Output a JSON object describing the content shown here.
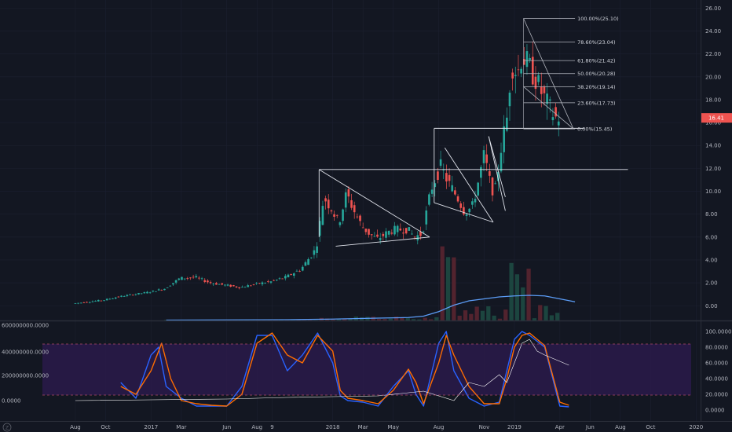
{
  "chart_data": [
    {
      "type": "candlestick",
      "pane": "price",
      "y_axis": {
        "ticks": [
          "26.00",
          "24.00",
          "22.00",
          "20.00",
          "18.00",
          "16.00",
          "14.00",
          "12.00",
          "10.00",
          "8.00",
          "6.00",
          "4.00",
          "2.00",
          "0.00"
        ],
        "range": [
          -0.6,
          26.3
        ]
      },
      "x_axis": {
        "ticks": [
          {
            "label": "Aug",
            "t": 0
          },
          {
            "label": "Oct",
            "t": 2
          },
          {
            "label": "2017",
            "t": 5
          },
          {
            "label": "Mar",
            "t": 7
          },
          {
            "label": "Jun",
            "t": 10
          },
          {
            "label": "Aug",
            "t": 12
          },
          {
            "label": "9",
            "t": 13
          },
          {
            "label": "2018",
            "t": 17
          },
          {
            "label": "Mar",
            "t": 19
          },
          {
            "label": "May",
            "t": 21
          },
          {
            "label": "Aug",
            "t": 24
          },
          {
            "label": "Nov",
            "t": 27
          },
          {
            "label": "2019",
            "t": 29
          },
          {
            "label": "Apr",
            "t": 32
          },
          {
            "label": "Jun",
            "t": 34
          },
          {
            "label": "Aug",
            "t": 36
          },
          {
            "label": "Oct",
            "t": 38
          },
          {
            "label": "2020",
            "t": 41
          }
        ],
        "range": [
          -0.1,
          41.4
        ],
        "unit": "months since Aug 2016"
      },
      "last_price": {
        "value": 16.41,
        "label": "16.41"
      },
      "ohlc_anchors": [
        [
          0,
          0.2
        ],
        [
          2,
          0.5
        ],
        [
          3,
          0.8
        ],
        [
          5,
          1.2
        ],
        [
          6,
          1.5
        ],
        [
          7,
          2.4
        ],
        [
          8,
          2.5
        ],
        [
          9,
          2.0
        ],
        [
          10,
          1.8
        ],
        [
          11,
          1.6
        ],
        [
          12,
          1.9
        ],
        [
          13,
          2.1
        ],
        [
          14,
          2.5
        ],
        [
          15,
          3.2
        ],
        [
          16,
          5.0
        ],
        [
          16.5,
          9.5
        ],
        [
          17,
          8.5
        ],
        [
          17.5,
          7.2
        ],
        [
          18,
          9.8
        ],
        [
          18.5,
          8.3
        ],
        [
          19,
          7.0
        ],
        [
          19.5,
          6.3
        ],
        [
          20,
          5.8
        ],
        [
          21,
          6.6
        ],
        [
          22,
          6.7
        ],
        [
          22.5,
          6.0
        ],
        [
          23,
          6.3
        ],
        [
          23.6,
          10.2
        ],
        [
          24.2,
          12.2
        ],
        [
          24.8,
          10.6
        ],
        [
          25.4,
          9.3
        ],
        [
          25.8,
          8.2
        ],
        [
          26.3,
          8.6
        ],
        [
          26.7,
          10.8
        ],
        [
          27.1,
          13.2
        ],
        [
          27.5,
          10.6
        ],
        [
          27.8,
          9.8
        ],
        [
          28.2,
          13.7
        ],
        [
          28.6,
          16.4
        ],
        [
          28.9,
          21.2
        ],
        [
          29.3,
          20.3
        ],
        [
          29.6,
          21.9
        ],
        [
          30.1,
          20.8
        ],
        [
          30.5,
          19.8
        ],
        [
          30.9,
          18.6
        ],
        [
          31.4,
          17.3
        ],
        [
          31.8,
          16.4
        ],
        [
          32.1,
          16.5
        ]
      ],
      "annotations": {
        "fibonacci_levels": [
          {
            "label": "100.00%(25.10)",
            "value": 25.1
          },
          {
            "label": "78.60%(23.04)",
            "value": 23.04
          },
          {
            "label": "61.80%(21.42)",
            "value": 21.42
          },
          {
            "label": "50.00%(20.28)",
            "value": 20.28
          },
          {
            "label": "38.20%(19.14)",
            "value": 19.14
          },
          {
            "label": "23.60%(17.73)",
            "value": 17.73
          },
          {
            "label": "0.00%(15.45)",
            "value": 15.45
          }
        ],
        "horizontal_levels": [
          11.9,
          15.45
        ]
      },
      "volume_line": [
        [
          6,
          0.02
        ],
        [
          10,
          0.03
        ],
        [
          14,
          0.04
        ],
        [
          17,
          0.07
        ],
        [
          20,
          0.12
        ],
        [
          22,
          0.15
        ],
        [
          23,
          0.22
        ],
        [
          24,
          0.45
        ],
        [
          25,
          0.78
        ],
        [
          26,
          1.0
        ],
        [
          27,
          1.1
        ],
        [
          28,
          1.2
        ],
        [
          29,
          1.25
        ],
        [
          30,
          1.28
        ],
        [
          31,
          1.25
        ],
        [
          32,
          1.1
        ],
        [
          33,
          0.95
        ]
      ]
    },
    {
      "type": "line",
      "pane": "oscillator",
      "left_axis": {
        "ticks": [
          "600000000.0000",
          "400000000.0000",
          "200000000.0000",
          "0.0000"
        ]
      },
      "right_axis": {
        "ticks": [
          "100.0000",
          "80.0000",
          "60.0000",
          "40.0000",
          "20.0000",
          "0.0000"
        ],
        "range": [
          -5,
          108
        ]
      },
      "bands": {
        "upper": 80,
        "lower": 20
      },
      "series": [
        {
          "color": "#2962ff",
          "values": [
            [
              3,
              35
            ],
            [
              4,
              15
            ],
            [
              5,
              70
            ],
            [
              5.5,
              80
            ],
            [
              6,
              30
            ],
            [
              7,
              15
            ],
            [
              8,
              5
            ],
            [
              9,
              5
            ],
            [
              10,
              5
            ],
            [
              11,
              30
            ],
            [
              12,
              95
            ],
            [
              13,
              95
            ],
            [
              14,
              50
            ],
            [
              15,
              70
            ],
            [
              16,
              98
            ],
            [
              17,
              60
            ],
            [
              17.5,
              18
            ],
            [
              18,
              12
            ],
            [
              19,
              10
            ],
            [
              20,
              5
            ],
            [
              21,
              30
            ],
            [
              22,
              50
            ],
            [
              22.5,
              20
            ],
            [
              23,
              5
            ],
            [
              24,
              85
            ],
            [
              24.5,
              100
            ],
            [
              25,
              50
            ],
            [
              26,
              15
            ],
            [
              27,
              5
            ],
            [
              28,
              10
            ],
            [
              28.5,
              50
            ],
            [
              29,
              90
            ],
            [
              29.5,
              100
            ],
            [
              30,
              95
            ],
            [
              31,
              80
            ],
            [
              32,
              5
            ],
            [
              32.6,
              4
            ]
          ]
        },
        {
          "color": "#ff6d00",
          "values": [
            [
              3,
              30
            ],
            [
              4,
              20
            ],
            [
              5,
              50
            ],
            [
              5.7,
              85
            ],
            [
              6.3,
              40
            ],
            [
              7,
              12
            ],
            [
              8,
              8
            ],
            [
              9,
              6
            ],
            [
              10,
              5
            ],
            [
              11,
              20
            ],
            [
              12,
              85
            ],
            [
              13,
              98
            ],
            [
              14,
              70
            ],
            [
              15,
              60
            ],
            [
              16,
              95
            ],
            [
              17,
              75
            ],
            [
              17.5,
              25
            ],
            [
              18,
              15
            ],
            [
              19,
              12
            ],
            [
              20,
              8
            ],
            [
              21,
              25
            ],
            [
              22,
              52
            ],
            [
              22.5,
              35
            ],
            [
              23,
              8
            ],
            [
              24,
              60
            ],
            [
              24.5,
              95
            ],
            [
              25,
              70
            ],
            [
              26,
              30
            ],
            [
              27,
              8
            ],
            [
              28,
              8
            ],
            [
              28.5,
              40
            ],
            [
              29,
              80
            ],
            [
              29.5,
              95
            ],
            [
              30,
              98
            ],
            [
              31,
              82
            ],
            [
              32,
              10
            ],
            [
              32.6,
              6
            ]
          ]
        },
        {
          "color": "#ffffff",
          "values": [
            [
              0,
              12
            ],
            [
              5,
              13
            ],
            [
              10,
              14
            ],
            [
              14,
              16
            ],
            [
              17,
              17
            ],
            [
              20,
              18
            ],
            [
              23,
              24
            ],
            [
              25,
              12
            ],
            [
              26,
              35
            ],
            [
              27,
              30
            ],
            [
              28,
              45
            ],
            [
              28.5,
              35
            ],
            [
              29,
              60
            ],
            [
              29.5,
              85
            ],
            [
              30,
              90
            ],
            [
              30.5,
              75
            ],
            [
              31,
              70
            ],
            [
              32,
              62
            ],
            [
              32.6,
              57
            ]
          ]
        }
      ]
    }
  ]
}
